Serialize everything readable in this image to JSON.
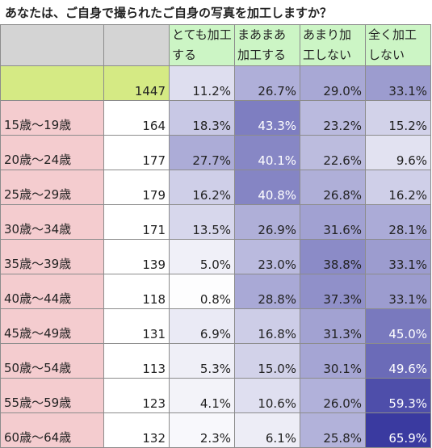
{
  "title": "あなたは、ご自身で撮られたご自身の写真を加工しますか？",
  "headers": [
    "",
    "",
    "とても加工する",
    "まあまあ加工する",
    "あまり加工しない",
    "全く加工しない"
  ],
  "total": {
    "label": "",
    "n": "1447",
    "p": [
      "11.2%",
      "26.7%",
      "29.0%",
      "33.1%"
    ]
  },
  "rows": [
    {
      "label": "15歳～19歳",
      "n": "164",
      "p": [
        "18.3%",
        "43.3%",
        "23.2%",
        "15.2%"
      ]
    },
    {
      "label": "20歳～24歳",
      "n": "177",
      "p": [
        "27.7%",
        "40.1%",
        "22.6%",
        "9.6%"
      ]
    },
    {
      "label": "25歳～29歳",
      "n": "179",
      "p": [
        "16.2%",
        "40.8%",
        "26.8%",
        "16.2%"
      ]
    },
    {
      "label": "30歳～34歳",
      "n": "171",
      "p": [
        "13.5%",
        "26.9%",
        "31.6%",
        "28.1%"
      ]
    },
    {
      "label": "35歳～39歳",
      "n": "139",
      "p": [
        "5.0%",
        "23.0%",
        "38.8%",
        "33.1%"
      ]
    },
    {
      "label": "40歳～44歳",
      "n": "118",
      "p": [
        "0.8%",
        "28.8%",
        "37.3%",
        "33.1%"
      ]
    },
    {
      "label": "45歳～49歳",
      "n": "131",
      "p": [
        "6.9%",
        "16.8%",
        "31.3%",
        "45.0%"
      ]
    },
    {
      "label": "50歳～54歳",
      "n": "113",
      "p": [
        "5.3%",
        "15.0%",
        "30.1%",
        "49.6%"
      ]
    },
    {
      "label": "55歳～59歳",
      "n": "123",
      "p": [
        "4.1%",
        "10.6%",
        "26.0%",
        "59.3%"
      ]
    },
    {
      "label": "60歳～64歳",
      "n": "132",
      "p": [
        "2.3%",
        "6.1%",
        "25.8%",
        "65.9%"
      ]
    }
  ],
  "colors": {
    "header_fill": "#ccf5c5",
    "header_blank": "#d4d4d4",
    "age_label_fill": "#f4cccf",
    "total_fill": "#d5ea84",
    "heat_low": "#ffffff",
    "heat_high": "#3a3aa0"
  }
}
